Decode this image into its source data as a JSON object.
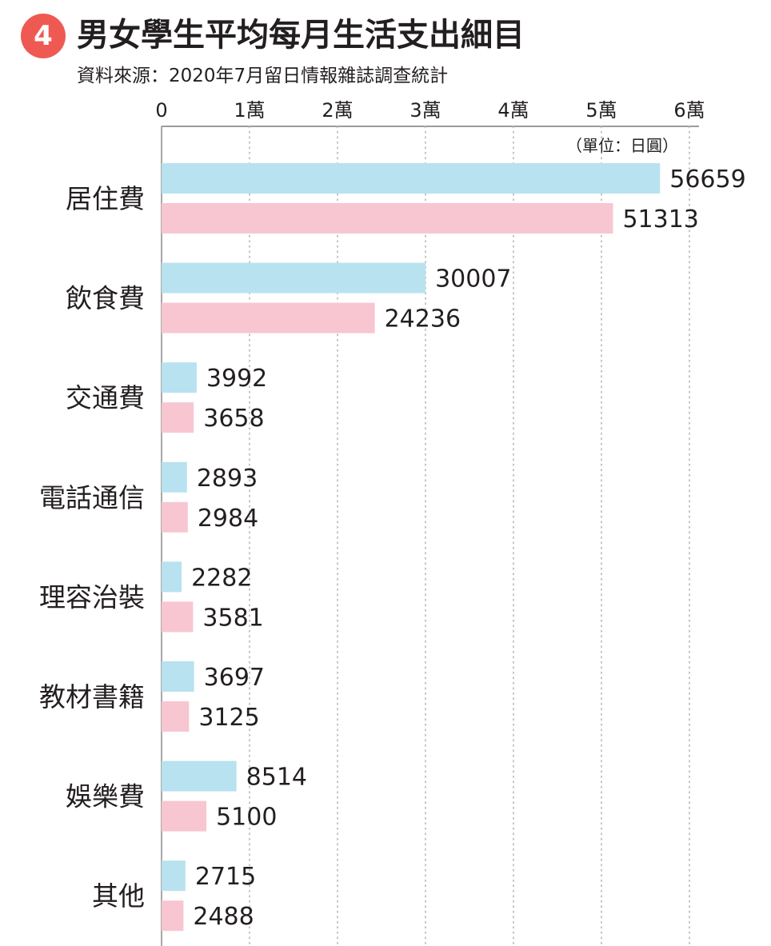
{
  "header": {
    "badge": "4",
    "title": "男女學生平均每月生活支出細目",
    "source": "資料來源：2020年7月留日情報雜誌調查統計"
  },
  "chart_data": {
    "type": "bar",
    "orientation": "horizontal",
    "unit_label": "（單位：日圓）",
    "categories": [
      "居住費",
      "飲食費",
      "交通費",
      "電話通信",
      "理容治裝",
      "教材書籍",
      "娛樂費",
      "其他"
    ],
    "series": [
      {
        "color": "#b8e2ef",
        "values": [
          56659,
          30007,
          3992,
          2893,
          2282,
          3697,
          8514,
          2715
        ]
      },
      {
        "color": "#f7c6d1",
        "values": [
          51313,
          24236,
          3658,
          2984,
          3581,
          3125,
          5100,
          2488
        ]
      }
    ],
    "xlim": [
      0,
      60000
    ],
    "x_ticks": [
      {
        "value": 0,
        "label": "0"
      },
      {
        "value": 10000,
        "label": "1萬"
      },
      {
        "value": 20000,
        "label": "2萬"
      },
      {
        "value": 30000,
        "label": "3萬"
      },
      {
        "value": 40000,
        "label": "4萬"
      },
      {
        "value": 50000,
        "label": "5萬"
      },
      {
        "value": 60000,
        "label": "6萬"
      }
    ],
    "grid": "vertical-dotted",
    "axis_position": "top"
  }
}
